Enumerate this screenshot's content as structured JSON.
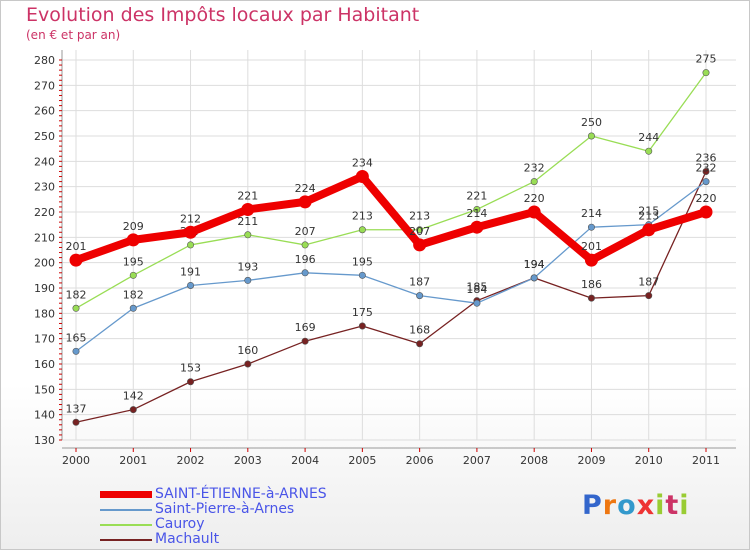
{
  "header": {
    "title": "Evolution des Impôts locaux par Habitant",
    "subtitle": "(en € et par an)"
  },
  "logo": {
    "text": "Proxiti"
  },
  "colors": {
    "title": "#cc3366",
    "legend_text": "#4a55e8",
    "grid": "#dddddd"
  },
  "chart_data": {
    "type": "line",
    "title": "Evolution des Impôts locaux par Habitant",
    "subtitle": "(en € et par an)",
    "xlabel": "",
    "ylabel": "",
    "ylim": [
      130,
      280
    ],
    "yticks": [
      130,
      140,
      150,
      160,
      170,
      180,
      190,
      200,
      210,
      220,
      230,
      240,
      250,
      260,
      270,
      280
    ],
    "x": [
      "2000",
      "2001",
      "2002",
      "2003",
      "2004",
      "2005",
      "2006",
      "2007",
      "2008",
      "2009",
      "2010",
      "2011"
    ],
    "grid": true,
    "legend_position": "bottom-left",
    "series": [
      {
        "name": "SAINT-ÉTIENNE-à-ARNES",
        "color": "#ee0000",
        "values": [
          201,
          209,
          212,
          221,
          224,
          234,
          207,
          214,
          220,
          201,
          213,
          220
        ]
      },
      {
        "name": "Saint-Pierre-à-Arnes",
        "color": "#6699cc",
        "values": [
          165,
          182,
          191,
          193,
          196,
          195,
          187,
          184,
          194,
          214,
          215,
          232
        ]
      },
      {
        "name": "Cauroy",
        "color": "#99dd55",
        "values": [
          182,
          195,
          207,
          211,
          207,
          213,
          213,
          221,
          232,
          250,
          244,
          275
        ]
      },
      {
        "name": "Machault",
        "color": "#772222",
        "values": [
          137,
          142,
          153,
          160,
          169,
          175,
          168,
          185,
          194,
          186,
          187,
          236
        ]
      }
    ]
  }
}
